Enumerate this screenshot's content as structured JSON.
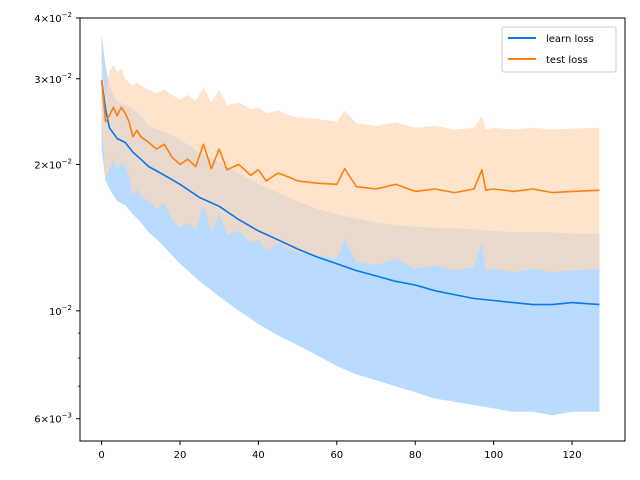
{
  "chart_data": {
    "type": "line",
    "title": "",
    "xlabel": "",
    "ylabel": "",
    "yscale": "log",
    "xlim": [
      -5.5,
      133.5
    ],
    "ylim": [
      0.0054,
      0.04
    ],
    "grid": false,
    "legend_position": "top-right",
    "x_ticks": [
      0,
      20,
      40,
      60,
      80,
      100,
      120
    ],
    "y_ticks": [
      {
        "value": 0.006,
        "mantissa": "6",
        "exponent": "−3"
      },
      {
        "value": 0.01,
        "mantissa": "",
        "exponent": "−2"
      },
      {
        "value": 0.02,
        "mantissa": "2",
        "exponent": "−2"
      },
      {
        "value": 0.03,
        "mantissa": "3",
        "exponent": "−2"
      },
      {
        "value": 0.04,
        "mantissa": "4",
        "exponent": "−2"
      }
    ],
    "y_minor_ticks": [
      0.007,
      0.008,
      0.009
    ],
    "series": [
      {
        "name": "learn loss",
        "color": "#0a77e8",
        "band_color": "#b8dbff",
        "x": [
          0,
          1,
          2,
          4,
          6,
          8,
          10,
          12,
          15,
          18,
          20,
          25,
          30,
          35,
          40,
          45,
          50,
          55,
          60,
          65,
          70,
          75,
          80,
          85,
          90,
          95,
          100,
          105,
          110,
          115,
          120,
          127
        ],
        "mean": [
          0.0298,
          0.026,
          0.0238,
          0.0226,
          0.0222,
          0.0212,
          0.0205,
          0.0198,
          0.0192,
          0.0186,
          0.0182,
          0.0171,
          0.0164,
          0.0154,
          0.0146,
          0.014,
          0.0134,
          0.0129,
          0.0125,
          0.0121,
          0.0118,
          0.0115,
          0.0113,
          0.011,
          0.0108,
          0.0106,
          0.0105,
          0.0104,
          0.0103,
          0.0103,
          0.0104,
          0.0103
        ],
        "upper": [
          0.037,
          0.032,
          0.029,
          0.027,
          0.0265,
          0.026,
          0.0252,
          0.024,
          0.0235,
          0.023,
          0.0225,
          0.0212,
          0.0202,
          0.0192,
          0.0182,
          0.0175,
          0.0168,
          0.0162,
          0.0158,
          0.0155,
          0.0152,
          0.015,
          0.0149,
          0.0148,
          0.0148,
          0.0147,
          0.0146,
          0.0145,
          0.0145,
          0.0145,
          0.0144,
          0.0144
        ],
        "lower": [
          0.0215,
          0.0185,
          0.0178,
          0.0168,
          0.0165,
          0.0158,
          0.0152,
          0.0145,
          0.0138,
          0.013,
          0.0125,
          0.0115,
          0.0107,
          0.01,
          0.0094,
          0.0089,
          0.0085,
          0.0081,
          0.0077,
          0.0074,
          0.0072,
          0.007,
          0.0068,
          0.0066,
          0.0065,
          0.0064,
          0.0063,
          0.0062,
          0.0062,
          0.0061,
          0.0062,
          0.0062
        ]
      },
      {
        "name": "test loss",
        "color": "#ff7f0e",
        "band_color": "#ffd9b8",
        "x": [
          0,
          1,
          2,
          3,
          4,
          5,
          6,
          7,
          8,
          9,
          10,
          12,
          14,
          16,
          18,
          20,
          22,
          24,
          26,
          28,
          30,
          32,
          35,
          38,
          40,
          42,
          45,
          48,
          50,
          55,
          60,
          62,
          65,
          70,
          75,
          80,
          85,
          90,
          95,
          97,
          98,
          100,
          105,
          110,
          115,
          120,
          127
        ],
        "mean": [
          0.0298,
          0.0245,
          0.0252,
          0.0262,
          0.0252,
          0.0262,
          0.0255,
          0.0245,
          0.0228,
          0.0235,
          0.0228,
          0.0222,
          0.0215,
          0.022,
          0.0207,
          0.02,
          0.0205,
          0.0198,
          0.022,
          0.0196,
          0.0215,
          0.0195,
          0.02,
          0.019,
          0.0195,
          0.0185,
          0.0192,
          0.0188,
          0.0185,
          0.0183,
          0.0182,
          0.0196,
          0.018,
          0.0178,
          0.0182,
          0.0176,
          0.0178,
          0.0175,
          0.0178,
          0.0195,
          0.0177,
          0.0178,
          0.0176,
          0.0178,
          0.0175,
          0.0176,
          0.0177
        ],
        "upper": [
          0.033,
          0.028,
          0.031,
          0.032,
          0.031,
          0.0315,
          0.03,
          0.0295,
          0.029,
          0.0295,
          0.029,
          0.0285,
          0.028,
          0.0285,
          0.0278,
          0.0272,
          0.0278,
          0.027,
          0.0288,
          0.0268,
          0.0285,
          0.0265,
          0.0268,
          0.026,
          0.0262,
          0.0255,
          0.0258,
          0.0252,
          0.025,
          0.0248,
          0.0245,
          0.0258,
          0.0243,
          0.024,
          0.0244,
          0.0238,
          0.024,
          0.0236,
          0.0238,
          0.0252,
          0.0236,
          0.0238,
          0.0236,
          0.0238,
          0.0236,
          0.0237,
          0.0238
        ],
        "lower": [
          0.025,
          0.0185,
          0.0195,
          0.0205,
          0.0195,
          0.0202,
          0.0198,
          0.019,
          0.0172,
          0.0178,
          0.0172,
          0.0168,
          0.0162,
          0.0166,
          0.0154,
          0.0148,
          0.0152,
          0.0146,
          0.0165,
          0.0145,
          0.0158,
          0.0143,
          0.0146,
          0.0138,
          0.014,
          0.0133,
          0.0138,
          0.0134,
          0.0132,
          0.013,
          0.0128,
          0.014,
          0.0126,
          0.0124,
          0.0128,
          0.0122,
          0.0124,
          0.0121,
          0.0123,
          0.0138,
          0.0121,
          0.0122,
          0.012,
          0.0122,
          0.012,
          0.0121,
          0.0122
        ]
      }
    ]
  }
}
